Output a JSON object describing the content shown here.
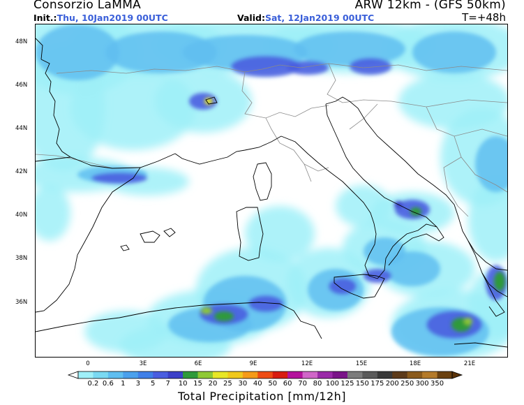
{
  "header": {
    "organization": "Consorzio LaMMA",
    "model": "ARW 12km - (GFS 50km)",
    "init_label": "Init.:",
    "init_value": "Thu, 10Jan2019 00UTC",
    "valid_label": "Valid:",
    "valid_value": "Sat, 12Jan2019 00UTC",
    "forecast_hour": "T=+48h"
  },
  "axes": {
    "lat_ticks": [
      "48N",
      "46N",
      "44N",
      "42N",
      "40N",
      "38N",
      "36N"
    ],
    "lon_ticks": [
      "0",
      "3E",
      "6E",
      "9E",
      "12E",
      "15E",
      "18E",
      "21E"
    ]
  },
  "colorbar": {
    "title": "Total Precipitation [mm/12h]",
    "labels": [
      "0.2",
      "0.6",
      "1",
      "3",
      "5",
      "7",
      "10",
      "15",
      "20",
      "25",
      "30",
      "40",
      "50",
      "60",
      "70",
      "80",
      "100",
      "125",
      "150",
      "175",
      "200",
      "250",
      "300",
      "350"
    ],
    "colors": [
      "#9ff0f8",
      "#7ad9f2",
      "#5fbef0",
      "#4aa0ec",
      "#3f7fe8",
      "#4a5ee0",
      "#3b3fc8",
      "#2f9a3a",
      "#8fc934",
      "#e8e626",
      "#f0c81c",
      "#f59a18",
      "#ee4c14",
      "#d81c10",
      "#b4129c",
      "#d066c8",
      "#9a2aa8",
      "#7a1488",
      "#7c7c7c",
      "#5a5a5a",
      "#383838",
      "#5c3a1a",
      "#8a5a1c",
      "#b47a2a",
      "#6a4010"
    ],
    "under_color": "#ffffff",
    "over_color": "#5a3208"
  },
  "colors": {
    "coastline": "#000000",
    "borders": "#888888",
    "title_value": "#3a5fd9"
  }
}
